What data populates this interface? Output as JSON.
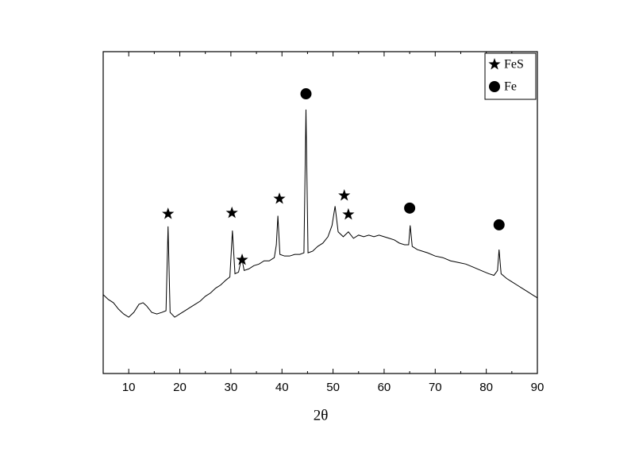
{
  "chart_data": {
    "type": "line",
    "x_label": "2θ",
    "xlim": [
      5,
      90
    ],
    "xticks": [
      10,
      20,
      30,
      40,
      50,
      60,
      70,
      80,
      90
    ],
    "xminorticks": [
      5,
      15,
      25,
      35,
      45,
      55,
      65,
      75,
      85
    ],
    "ylim": [
      0,
      100
    ],
    "color": "#000000",
    "legend": "upper right",
    "x": [
      5,
      6,
      7,
      8,
      9,
      10,
      11,
      12,
      12.8,
      13.5,
      14.5,
      15.5,
      16.5,
      17.3,
      17.7,
      18.1,
      19,
      20,
      21,
      22,
      23,
      24,
      25,
      26,
      27,
      28,
      29,
      29.8,
      30.3,
      30.8,
      31.5,
      32.1,
      32.6,
      33.5,
      34.5,
      35.5,
      36.5,
      37.5,
      38.5,
      38.9,
      39.2,
      39.6,
      40.5,
      41.5,
      42.5,
      43.5,
      44.3,
      44.7,
      45.1,
      46,
      47,
      48,
      49,
      49.8,
      50.4,
      51,
      52,
      53,
      54,
      55,
      56,
      57,
      58,
      59,
      60,
      61,
      62,
      63,
      64,
      64.8,
      65.1,
      65.5,
      66.5,
      67.5,
      68.5,
      70,
      71.5,
      73,
      74.5,
      76,
      77.5,
      79,
      80.5,
      81.5,
      82.2,
      82.5,
      82.9,
      84,
      85,
      86,
      87,
      88,
      89,
      90
    ],
    "values": [
      24.5,
      23,
      22,
      20,
      18.5,
      17.5,
      19,
      21.5,
      22,
      21,
      19,
      18.5,
      19,
      19.5,
      45.7,
      19,
      17.5,
      18.5,
      19.5,
      20.5,
      21.5,
      22.5,
      24,
      25,
      26.5,
      27.5,
      29,
      30,
      44.4,
      31,
      31.5,
      36,
      32,
      32.5,
      33.5,
      34,
      35,
      35,
      36,
      40,
      49,
      37,
      36.5,
      36.5,
      37,
      37,
      37.5,
      82,
      37.5,
      38,
      39.5,
      40.5,
      42.5,
      46,
      52,
      44,
      42.5,
      44,
      42,
      43,
      42.5,
      43,
      42.5,
      43,
      42.5,
      42,
      41.5,
      40.5,
      40,
      40,
      46,
      39.5,
      38.5,
      38,
      37.5,
      36.5,
      36,
      35,
      34.5,
      34,
      33,
      32,
      31,
      30.5,
      32,
      38.5,
      31,
      29.5,
      28.5,
      27.5,
      26.5,
      25.5,
      24.5,
      23.5
    ],
    "markers": [
      {
        "name": "FeS",
        "symbol": "star",
        "x": [
          17.7,
          30.2,
          32.2,
          39.5,
          52.2,
          53
        ],
        "y": [
          49.6,
          49.9,
          35.3,
          54.3,
          55.3,
          49.4
        ]
      },
      {
        "name": "Fe",
        "symbol": "circle",
        "x": [
          44.7,
          65,
          82.5
        ],
        "y": [
          86.9,
          51.4,
          46.2
        ]
      }
    ]
  }
}
